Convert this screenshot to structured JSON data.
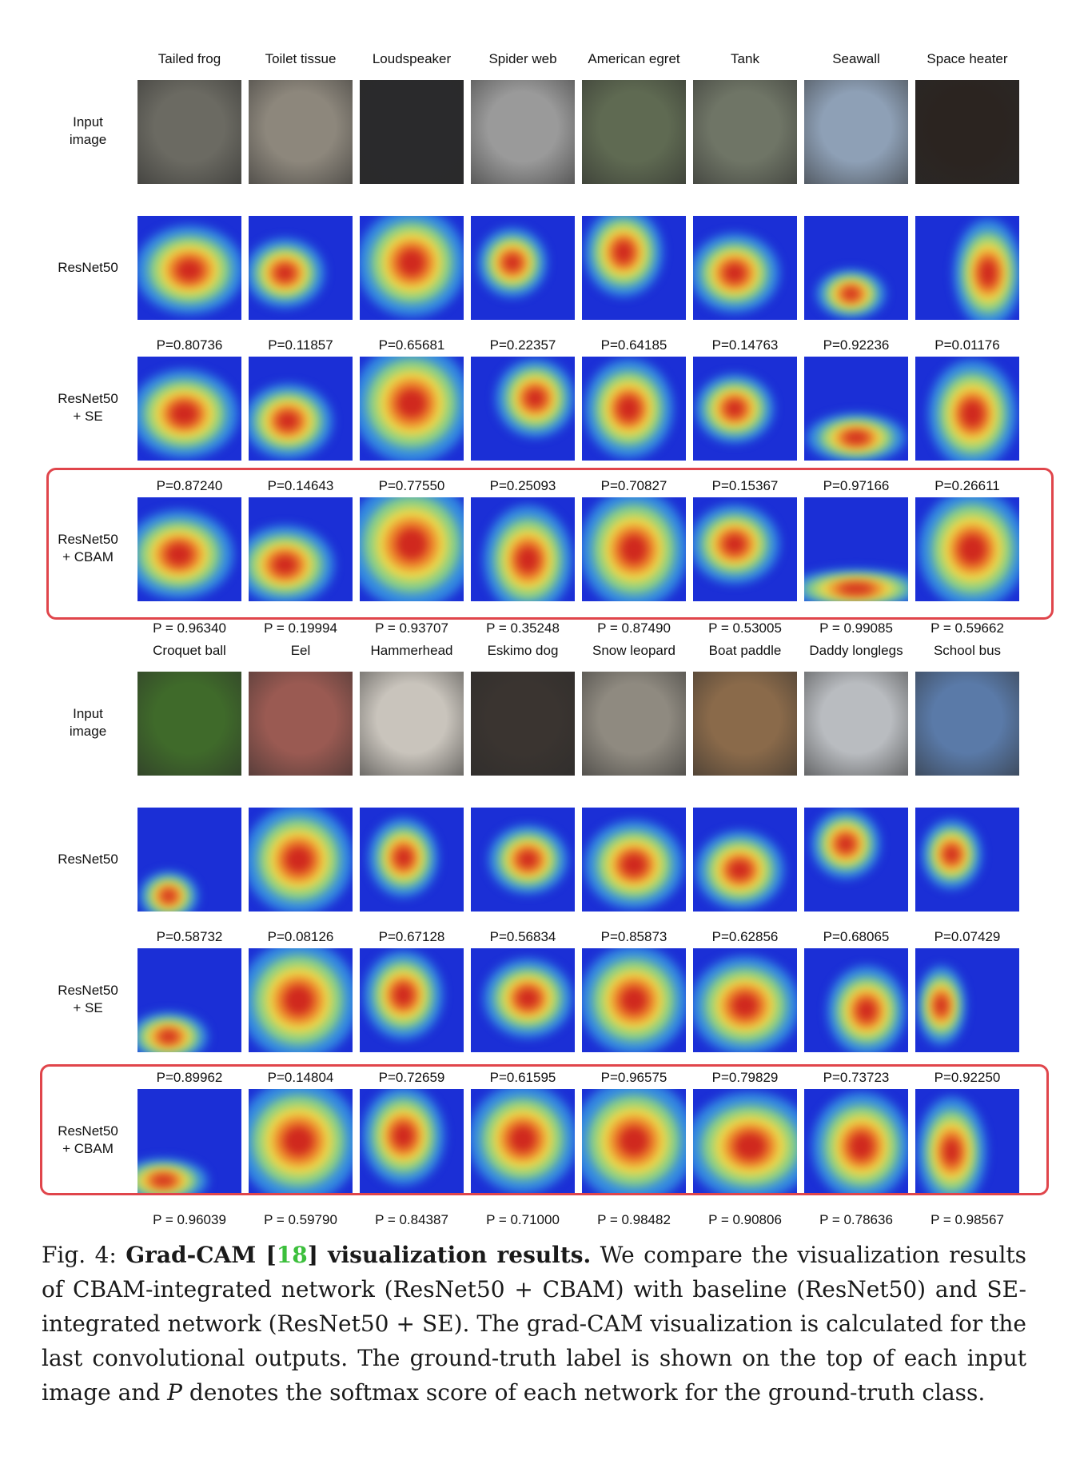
{
  "row_labels": {
    "input": [
      "Input",
      "image"
    ],
    "resnet": [
      "ResNet50"
    ],
    "se": [
      "ResNet50",
      "+ SE"
    ],
    "cbam": [
      "ResNet50",
      "+ CBAM"
    ]
  },
  "blocks": [
    {
      "classes": [
        "Tailed frog",
        "Toilet tissue",
        "Loudspeaker",
        "Spider web",
        "American egret",
        "Tank",
        "Seawall",
        "Space heater"
      ],
      "scores_resnet": [
        "P=0.80736",
        "P=0.11857",
        "P=0.65681",
        "P=0.22357",
        "P=0.64185",
        "P=0.14763",
        "P=0.92236",
        "P=0.01176"
      ],
      "scores_se": [
        "P=0.87240",
        "P=0.14643",
        "P=0.77550",
        "P=0.25093",
        "P=0.70827",
        "P=0.15367",
        "P=0.97166",
        "P=0.26611"
      ],
      "scores_cbam": [
        "P = 0.96340",
        "P = 0.19994",
        "P = 0.93707",
        "P = 0.35248",
        "P = 0.87490",
        "P = 0.53005",
        "P = 0.99085",
        "P = 0.59662"
      ],
      "photo_colors": [
        "#6b6a62",
        "#8d877c",
        "#2a2a2c",
        "#9a9a9a",
        "#5f6a52",
        "#6f7566",
        "#8ea0b6",
        "#2b2420"
      ]
    },
    {
      "classes": [
        "Croquet ball",
        "Eel",
        "Hammerhead",
        "Eskimo dog",
        "Snow leopard",
        "Boat paddle",
        "Daddy longlegs",
        "School bus"
      ],
      "scores_resnet": [
        "P=0.58732",
        "P=0.08126",
        "P=0.67128",
        "P=0.56834",
        "P=0.85873",
        "P=0.62856",
        "P=0.68065",
        "P=0.07429"
      ],
      "scores_se": [
        "P=0.89962",
        "P=0.14804",
        "P=0.72659",
        "P=0.61595",
        "P=0.96575",
        "P=0.79829",
        "P=0.73723",
        "P=0.92250"
      ],
      "scores_cbam": [
        "P = 0.96039",
        "P = 0.59790",
        "P = 0.84387",
        "P = 0.71000",
        "P = 0.98482",
        "P = 0.90806",
        "P = 0.78636",
        "P = 0.98567"
      ],
      "photo_colors": [
        "#3f6a2a",
        "#9a5a52",
        "#c9c4bc",
        "#3a3430",
        "#8f8a80",
        "#8a6a4a",
        "#b9bcc0",
        "#5a7aa8"
      ]
    }
  ],
  "caption": {
    "fig_num": "Fig. 4:",
    "title_a": "Grad-CAM [",
    "cite": "18",
    "title_b": "] visualization results.",
    "body_a": " We compare the visualization results of CBAM-integrated network (ResNet50 + CBAM) with baseline (ResNet50) and SE-integrated network (ResNet50 + SE). The grad-CAM visualization is calculated for the last convolutional outputs. The ground-truth label is shown on the top of each input image and ",
    "p_symbol": "P",
    "body_b": " denotes the softmax score of each network for the ground-truth class."
  },
  "colors": {
    "highlight_border": "#e0454b",
    "cam_base": "#1b2fd6",
    "citation": "#3cbf3c"
  }
}
